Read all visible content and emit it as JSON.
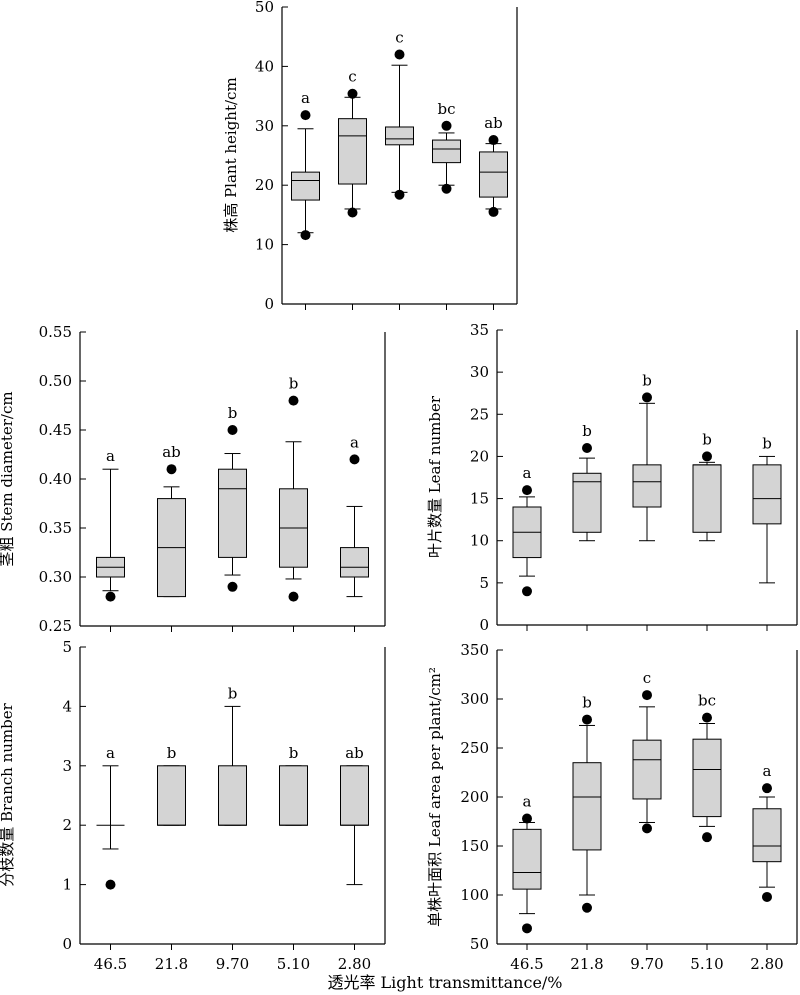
{
  "x_title": "透光率 Light transmittance/%",
  "chart_data": [
    {
      "type": "box",
      "ylabel": "株高 Plant height/cm",
      "ylim": [
        0,
        50
      ],
      "yticks": [
        0,
        10,
        20,
        30,
        40,
        50
      ],
      "categories": [
        "46.5",
        "21.8",
        "9.70",
        "5.10",
        "2.80"
      ],
      "show_x_tick_labels": false,
      "boxes": [
        {
          "q1": 17.5,
          "median": 20.8,
          "q3": 22.2,
          "whisker_low": 12.0,
          "whisker_high": 29.5,
          "outliers": [
            11.6,
            31.8
          ],
          "letter": "a"
        },
        {
          "q1": 20.2,
          "median": 28.3,
          "q3": 31.2,
          "whisker_low": 16.0,
          "whisker_high": 34.8,
          "outliers": [
            15.4,
            35.4
          ],
          "letter": "c"
        },
        {
          "q1": 26.8,
          "median": 27.8,
          "q3": 29.8,
          "whisker_low": 18.8,
          "whisker_high": 40.2,
          "outliers": [
            18.4,
            42.0
          ],
          "letter": "c"
        },
        {
          "q1": 23.8,
          "median": 26.1,
          "q3": 27.6,
          "whisker_low": 20.0,
          "whisker_high": 28.8,
          "outliers": [
            19.4,
            30.0
          ],
          "letter": "bc"
        },
        {
          "q1": 18.0,
          "median": 22.2,
          "q3": 25.6,
          "whisker_low": 16.0,
          "whisker_high": 27.0,
          "outliers": [
            15.5,
            27.6
          ],
          "letter": "ab"
        }
      ]
    },
    {
      "type": "box",
      "ylabel": "茎粗 Stem diameter/cm",
      "ylim": [
        0.25,
        0.55
      ],
      "yticks": [
        "0.25",
        "0.30",
        "0.35",
        "0.40",
        "0.45",
        "0.50",
        "0.55"
      ],
      "categories": [
        "46.5",
        "21.8",
        "9.70",
        "5.10",
        "2.80"
      ],
      "show_x_tick_labels": false,
      "boxes": [
        {
          "q1": 0.3,
          "median": 0.31,
          "q3": 0.32,
          "whisker_low": 0.286,
          "whisker_high": 0.41,
          "outliers": [
            0.28
          ],
          "letter": "a"
        },
        {
          "q1": 0.28,
          "median": 0.33,
          "q3": 0.38,
          "whisker_low": 0.28,
          "whisker_high": 0.392,
          "outliers": [
            0.41
          ],
          "letter": "ab"
        },
        {
          "q1": 0.32,
          "median": 0.39,
          "q3": 0.41,
          "whisker_low": 0.302,
          "whisker_high": 0.426,
          "outliers": [
            0.29,
            0.45
          ],
          "letter": "b"
        },
        {
          "q1": 0.31,
          "median": 0.35,
          "q3": 0.39,
          "whisker_low": 0.298,
          "whisker_high": 0.438,
          "outliers": [
            0.28,
            0.48
          ],
          "letter": "b"
        },
        {
          "q1": 0.3,
          "median": 0.31,
          "q3": 0.33,
          "whisker_low": 0.28,
          "whisker_high": 0.372,
          "outliers": [
            0.42
          ],
          "letter": "a"
        }
      ]
    },
    {
      "type": "box",
      "ylabel": "叶片数量 Leaf number",
      "ylim": [
        0,
        35
      ],
      "yticks": [
        0,
        5,
        10,
        15,
        20,
        25,
        30,
        35
      ],
      "categories": [
        "46.5",
        "21.8",
        "9.70",
        "5.10",
        "2.80"
      ],
      "show_x_tick_labels": false,
      "boxes": [
        {
          "q1": 8,
          "median": 11,
          "q3": 14,
          "whisker_low": 5.8,
          "whisker_high": 15.2,
          "outliers": [
            4,
            16
          ],
          "letter": "a"
        },
        {
          "q1": 11,
          "median": 17,
          "q3": 18,
          "whisker_low": 10,
          "whisker_high": 19.8,
          "outliers": [
            21
          ],
          "letter": "b"
        },
        {
          "q1": 14,
          "median": 17,
          "q3": 19,
          "whisker_low": 10,
          "whisker_high": 26.3,
          "outliers": [
            27
          ],
          "letter": "b"
        },
        {
          "q1": 11,
          "median": 19,
          "q3": 19,
          "whisker_low": 10,
          "whisker_high": 19.3,
          "outliers": [
            20
          ],
          "letter": "b"
        },
        {
          "q1": 12,
          "median": 15,
          "q3": 19,
          "whisker_low": 5,
          "whisker_high": 20,
          "outliers": [],
          "letter": "b"
        }
      ]
    },
    {
      "type": "box",
      "ylabel": "分枝数量 Branch number",
      "ylim": [
        0,
        5
      ],
      "yticks": [
        0,
        1,
        2,
        3,
        4,
        5
      ],
      "categories": [
        "46.5",
        "21.8",
        "9.70",
        "5.10",
        "2.80"
      ],
      "show_x_tick_labels": true,
      "boxes": [
        {
          "q1": 2,
          "median": 2,
          "q3": 2,
          "whisker_low": 1.6,
          "whisker_high": 3,
          "outliers": [
            1
          ],
          "letter": "a"
        },
        {
          "q1": 2,
          "median": 2,
          "q3": 3,
          "whisker_low": 2,
          "whisker_high": 3,
          "outliers": [],
          "letter": "b"
        },
        {
          "q1": 2,
          "median": 2,
          "q3": 3,
          "whisker_low": 2,
          "whisker_high": 4,
          "outliers": [],
          "letter": "b"
        },
        {
          "q1": 2,
          "median": 2,
          "q3": 3,
          "whisker_low": 2,
          "whisker_high": 3,
          "outliers": [],
          "letter": "b"
        },
        {
          "q1": 2,
          "median": 2,
          "q3": 3,
          "whisker_low": 1,
          "whisker_high": 3,
          "outliers": [],
          "letter": "ab"
        }
      ]
    },
    {
      "type": "box",
      "ylabel": "单株叶面积 Leaf area per plant/cm²",
      "ylim": [
        50,
        350
      ],
      "yticks": [
        50,
        100,
        150,
        200,
        250,
        300,
        350
      ],
      "categories": [
        "46.5",
        "21.8",
        "9.70",
        "5.10",
        "2.80"
      ],
      "show_x_tick_labels": true,
      "boxes": [
        {
          "q1": 106,
          "median": 123,
          "q3": 167,
          "whisker_low": 81,
          "whisker_high": 174,
          "outliers": [
            66,
            178
          ],
          "letter": "a"
        },
        {
          "q1": 146,
          "median": 200,
          "q3": 235,
          "whisker_low": 100,
          "whisker_high": 273,
          "outliers": [
            87,
            279
          ],
          "letter": "b"
        },
        {
          "q1": 198,
          "median": 238,
          "q3": 258,
          "whisker_low": 174,
          "whisker_high": 292,
          "outliers": [
            168,
            304
          ],
          "letter": "c"
        },
        {
          "q1": 180,
          "median": 228,
          "q3": 259,
          "whisker_low": 170,
          "whisker_high": 275,
          "outliers": [
            159,
            281
          ],
          "letter": "bc"
        },
        {
          "q1": 134,
          "median": 150,
          "q3": 188,
          "whisker_low": 108,
          "whisker_high": 200,
          "outliers": [
            98,
            209
          ],
          "letter": "a"
        }
      ]
    }
  ]
}
